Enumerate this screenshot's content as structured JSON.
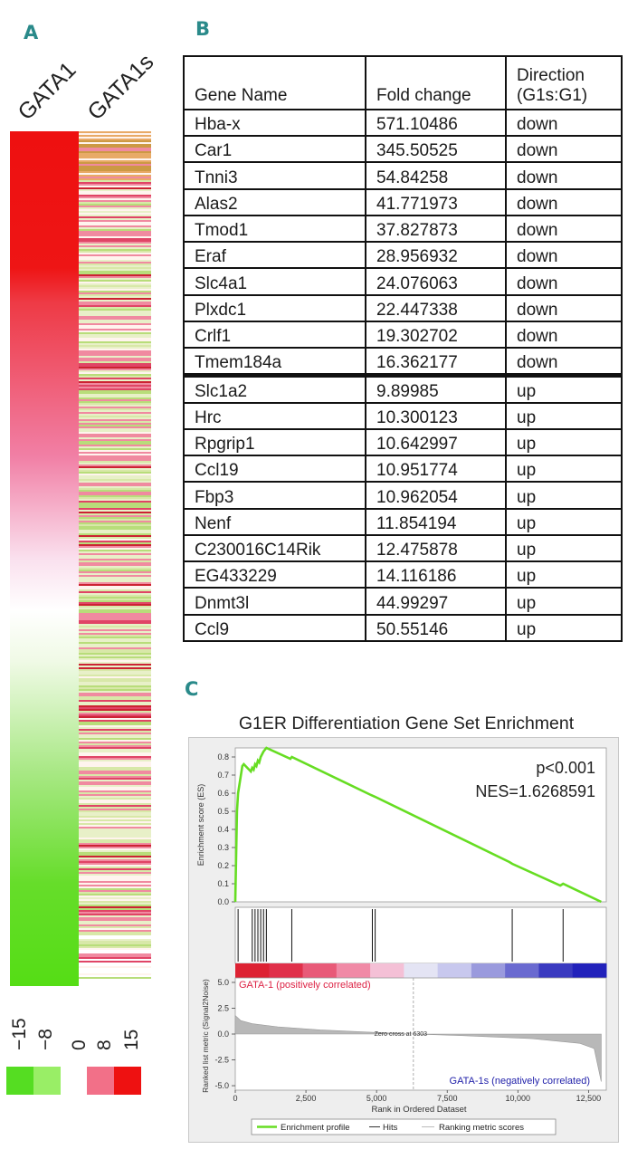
{
  "panels": {
    "a": "A",
    "b": "B",
    "c": "C"
  },
  "heatmap": {
    "columns": [
      "GATA1",
      "GATA1s"
    ],
    "legend_ticks": [
      "−15",
      "−8",
      "0",
      "8",
      "15"
    ],
    "colors": {
      "high": "#ee1111",
      "mid": "#ffffff",
      "low": "#55dd22",
      "light_green": "#99ee66",
      "light_red": "#f27088"
    }
  },
  "table": {
    "headers": [
      "Gene Name",
      "Fold change",
      "Direction",
      "(G1s:G1)"
    ],
    "down_rows": [
      {
        "gene": "Hba-x",
        "fold": "571.10486",
        "dir": "down"
      },
      {
        "gene": "Car1",
        "fold": "345.50525",
        "dir": "down"
      },
      {
        "gene": "Tnni3",
        "fold": "54.84258",
        "dir": "down"
      },
      {
        "gene": "Alas2",
        "fold": "41.771973",
        "dir": "down"
      },
      {
        "gene": "Tmod1",
        "fold": "37.827873",
        "dir": "down"
      },
      {
        "gene": "Eraf",
        "fold": "28.956932",
        "dir": "down"
      },
      {
        "gene": "Slc4a1",
        "fold": "24.076063",
        "dir": "down"
      },
      {
        "gene": "Plxdc1",
        "fold": "22.447338",
        "dir": "down"
      },
      {
        "gene": "Crlf1",
        "fold": "19.302702",
        "dir": "down"
      },
      {
        "gene": "Tmem184a",
        "fold": "16.362177",
        "dir": "down"
      }
    ],
    "up_rows": [
      {
        "gene": "Slc1a2",
        "fold": "9.89985",
        "dir": "up"
      },
      {
        "gene": "Hrc",
        "fold": "10.300123",
        "dir": "up"
      },
      {
        "gene": "Rpgrip1",
        "fold": "10.642997",
        "dir": "up"
      },
      {
        "gene": "Ccl19",
        "fold": "10.951774",
        "dir": "up"
      },
      {
        "gene": "Fbp3",
        "fold": "10.962054",
        "dir": "up"
      },
      {
        "gene": "Nenf",
        "fold": "11.854194",
        "dir": "up"
      },
      {
        "gene": "C230016C14Rik",
        "fold": "12.475878",
        "dir": "up"
      },
      {
        "gene": "EG433229",
        "fold": "14.116186",
        "dir": "up"
      },
      {
        "gene": "Dnmt3l",
        "fold": "44.99297",
        "dir": "up"
      },
      {
        "gene": "Ccl9",
        "fold": "50.55146",
        "dir": "up"
      }
    ]
  },
  "gsea": {
    "title": "G1ER Differentiation Gene Set Enrichment",
    "pvalue": "p<0.001",
    "nes": "NES=1.6268591",
    "es_ylabel": "Enrichment score (ES)",
    "es_yticks": [
      "0.8",
      "0.7",
      "0.6",
      "0.5",
      "0.4",
      "0.3",
      "0.2",
      "0.1",
      "0.0"
    ],
    "metric_ylabel": "Ranked list metric (Signal2Noise)",
    "metric_yticks": [
      "5.0",
      "2.5",
      "0.0",
      "-2.5",
      "-5.0"
    ],
    "xlabel": "Rank in Ordered Dataset",
    "xticks": [
      "0",
      "2,500",
      "5,000",
      "7,500",
      "10,000",
      "12,500"
    ],
    "pos_label": "GATA-1 (positively correlated)",
    "neg_label": "GATA-1s (negatively correlated)",
    "zero_cross": "Zero cross at 6303",
    "legend": [
      "Enrichment profile",
      "Hits",
      "Ranking metric scores"
    ],
    "colors": {
      "profile": "#66dd22",
      "pos": "#dd2244",
      "neg": "#2222aa",
      "metric": "#b8b8b8"
    }
  },
  "chart_data": [
    {
      "type": "line",
      "title": "G1ER Differentiation Gene Set Enrichment",
      "xlabel": "Rank in Ordered Dataset",
      "ylabel": "Enrichment score (ES)",
      "xlim": [
        0,
        13000
      ],
      "ylim": [
        0,
        0.85
      ],
      "series": [
        {
          "name": "Enrichment profile",
          "x": [
            0,
            60,
            100,
            250,
            300,
            550,
            600,
            650,
            700,
            750,
            800,
            850,
            900,
            1000,
            1100,
            1950,
            2000,
            4800,
            4950,
            9700,
            9800,
            11500,
            11600,
            12950
          ],
          "y": [
            0.0,
            0.5,
            0.6,
            0.75,
            0.76,
            0.72,
            0.74,
            0.73,
            0.76,
            0.75,
            0.78,
            0.77,
            0.8,
            0.83,
            0.85,
            0.79,
            0.8,
            0.59,
            0.58,
            0.22,
            0.21,
            0.09,
            0.1,
            0.0
          ]
        }
      ],
      "hits": [
        100,
        600,
        700,
        800,
        900,
        1000,
        1100,
        2000,
        4850,
        4950,
        9800,
        11600
      ]
    },
    {
      "type": "area",
      "xlabel": "Rank in Ordered Dataset",
      "ylabel": "Ranked list metric (Signal2Noise)",
      "xlim": [
        0,
        13000
      ],
      "ylim": [
        -5.0,
        5.0
      ],
      "zero_cross": 6303,
      "series": [
        {
          "name": "Ranking metric scores",
          "x": [
            0,
            200,
            600,
            1500,
            3000,
            5000,
            6303,
            8000,
            10500,
            12200,
            12700,
            12950
          ],
          "y": [
            1.8,
            1.3,
            1.0,
            0.7,
            0.4,
            0.15,
            0.0,
            -0.15,
            -0.45,
            -0.9,
            -1.4,
            -4.6
          ]
        }
      ]
    }
  ]
}
